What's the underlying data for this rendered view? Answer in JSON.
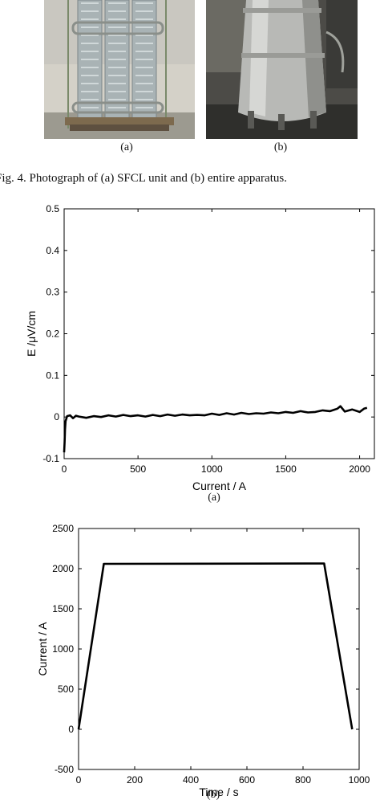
{
  "figure4": {
    "label_a": "(a)",
    "label_b": "(b)",
    "caption": "Fig. 4.    Photograph of (a) SFCL unit and (b) entire apparatus."
  },
  "figure5": {
    "label_a": "(a)",
    "label_b": "(b)"
  },
  "chart_data": [
    {
      "type": "line",
      "xlabel": "Current / A",
      "ylabel": "E /μV/cm",
      "xlim": [
        0,
        2100
      ],
      "ylim": [
        -0.1,
        0.5
      ],
      "xticks": [
        "0",
        "500",
        "1000",
        "1500",
        "2000"
      ],
      "yticks": [
        "-0.1",
        "0",
        "0.1",
        "0.2",
        "0.3",
        "0.4",
        "0.5"
      ],
      "grid": false,
      "series": [
        {
          "x": [
            0,
            3,
            6,
            10,
            20,
            40,
            60,
            80,
            100,
            150,
            200,
            250,
            300,
            350,
            400,
            450,
            500,
            550,
            600,
            650,
            700,
            750,
            800,
            850,
            900,
            950,
            1000,
            1050,
            1100,
            1150,
            1200,
            1250,
            1300,
            1350,
            1400,
            1450,
            1500,
            1550,
            1600,
            1650,
            1700,
            1750,
            1800,
            1850,
            1870,
            1900,
            1950,
            2000,
            2030,
            2050
          ],
          "y": [
            -0.085,
            -0.06,
            -0.03,
            -0.01,
            0.002,
            0.004,
            -0.003,
            0.003,
            0.001,
            -0.002,
            0.002,
            0.0,
            0.004,
            0.001,
            0.005,
            0.002,
            0.004,
            0.001,
            0.005,
            0.002,
            0.006,
            0.003,
            0.006,
            0.004,
            0.005,
            0.004,
            0.008,
            0.005,
            0.009,
            0.006,
            0.01,
            0.007,
            0.009,
            0.008,
            0.011,
            0.009,
            0.012,
            0.01,
            0.014,
            0.011,
            0.012,
            0.016,
            0.014,
            0.02,
            0.026,
            0.013,
            0.018,
            0.012,
            0.02,
            0.022
          ]
        }
      ]
    },
    {
      "type": "line",
      "xlabel": "Time / s",
      "ylabel": "Current / A",
      "xlim": [
        0,
        1000
      ],
      "ylim": [
        -500,
        2500
      ],
      "xticks": [
        "0",
        "200",
        "400",
        "600",
        "800",
        "1000"
      ],
      "yticks": [
        "-500",
        "0",
        "500",
        "1000",
        "1500",
        "2000",
        "2500"
      ],
      "grid": false,
      "series": [
        {
          "x": [
            0,
            90,
            875,
            975
          ],
          "y": [
            0,
            2060,
            2065,
            0
          ]
        }
      ]
    }
  ]
}
